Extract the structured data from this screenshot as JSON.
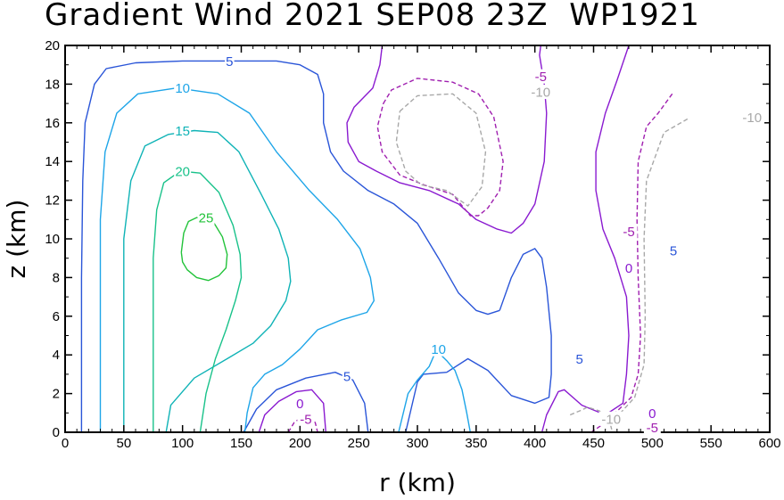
{
  "chart_data": {
    "type": "contour",
    "title": "Gradient Wind 2021 SEP08 23Z  WP1921",
    "xlabel": "r (km)",
    "ylabel": "z (km)",
    "xlim": [
      0,
      600
    ],
    "ylim": [
      0,
      20
    ],
    "xticks": [
      "0",
      "50",
      "100",
      "150",
      "200",
      "250",
      "300",
      "350",
      "400",
      "450",
      "500",
      "550",
      "600"
    ],
    "yticks": [
      "0",
      "2",
      "4",
      "6",
      "8",
      "10",
      "12",
      "14",
      "16",
      "18",
      "20"
    ],
    "colors": {
      "c25": "#22c33a",
      "c20": "#19c28a",
      "c15": "#0fb3b6",
      "c10": "#1ea5e8",
      "c5": "#2a55d8",
      "c0": "#8a1ad0",
      "cm5": "#a020b0",
      "cm10": "#a8a8a8"
    },
    "contours": [
      {
        "level": "5",
        "color": "c5",
        "dash": false,
        "points": [
          [
            14,
            0
          ],
          [
            14,
            8
          ],
          [
            15,
            13
          ],
          [
            17,
            16
          ],
          [
            25,
            18
          ],
          [
            35,
            18.8
          ],
          [
            60,
            19.1
          ],
          [
            100,
            19.2
          ],
          [
            140,
            19.2
          ],
          [
            180,
            19.2
          ],
          [
            200,
            19
          ],
          [
            215,
            18.5
          ],
          [
            220,
            17.5
          ],
          [
            220,
            16
          ],
          [
            226,
            14.5
          ],
          [
            237,
            13.5
          ],
          [
            258,
            12.5
          ],
          [
            280,
            11.8
          ],
          [
            300,
            10.8
          ],
          [
            318,
            9
          ],
          [
            335,
            7.2
          ],
          [
            350,
            6.3
          ],
          [
            360,
            6.1
          ],
          [
            370,
            6.3
          ]
        ]
      },
      {
        "level": "5",
        "color": "c5",
        "dash": false,
        "points": [
          [
            152,
            0
          ],
          [
            163,
            1.2
          ],
          [
            180,
            2.2
          ],
          [
            205,
            2.8
          ],
          [
            230,
            3.1
          ],
          [
            245,
            2.7
          ],
          [
            255,
            1.5
          ],
          [
            258,
            0
          ]
        ]
      },
      {
        "level": "5",
        "color": "c5",
        "dash": false,
        "points": [
          [
            370,
            6.3
          ],
          [
            380,
            8
          ],
          [
            390,
            9.2
          ],
          [
            400,
            9.5
          ],
          [
            406,
            9
          ],
          [
            410,
            7.5
          ],
          [
            414,
            5
          ],
          [
            414,
            3
          ],
          [
            412,
            1.8
          ],
          [
            400,
            1.5
          ],
          [
            380,
            1.9
          ],
          [
            360,
            3.2
          ],
          [
            343,
            3.8
          ],
          [
            325,
            3.1
          ],
          [
            305,
            3
          ],
          [
            300,
            2.6
          ],
          [
            290,
            0
          ]
        ]
      },
      {
        "level": "10",
        "color": "c10",
        "dash": false,
        "points": [
          [
            30,
            0
          ],
          [
            30,
            11
          ],
          [
            34,
            14.5
          ],
          [
            44,
            16.5
          ],
          [
            62,
            17.5
          ],
          [
            95,
            17.8
          ],
          [
            130,
            17.5
          ],
          [
            157,
            16.5
          ],
          [
            180,
            14.5
          ],
          [
            208,
            12.5
          ],
          [
            232,
            11
          ],
          [
            251,
            9.5
          ],
          [
            260,
            8
          ],
          [
            263,
            6.8
          ],
          [
            257,
            6.2
          ],
          [
            235,
            5.8
          ],
          [
            215,
            5.3
          ],
          [
            200,
            4.3
          ],
          [
            185,
            3.5
          ],
          [
            170,
            3
          ],
          [
            160,
            2.3
          ],
          [
            155,
            1
          ],
          [
            153,
            0
          ]
        ]
      },
      {
        "level": "10",
        "color": "c10",
        "dash": false,
        "points": [
          [
            284,
            0
          ],
          [
            288,
            1
          ],
          [
            292,
            2
          ],
          [
            300,
            2.7
          ],
          [
            310,
            3.4
          ],
          [
            315,
            4.1
          ],
          [
            320,
            4
          ],
          [
            325,
            3.7
          ],
          [
            332,
            3.2
          ],
          [
            338,
            2.2
          ],
          [
            342,
            1
          ],
          [
            345,
            0
          ]
        ]
      },
      {
        "level": "15",
        "color": "c15",
        "dash": false,
        "points": [
          [
            50,
            0
          ],
          [
            50,
            10
          ],
          [
            56,
            13
          ],
          [
            68,
            14.8
          ],
          [
            88,
            15.4
          ],
          [
            110,
            15.6
          ],
          [
            130,
            15.5
          ],
          [
            148,
            14.5
          ],
          [
            167,
            12.3
          ],
          [
            182,
            10.5
          ],
          [
            190,
            9
          ],
          [
            192,
            7.8
          ],
          [
            188,
            6.8
          ],
          [
            175,
            5.5
          ],
          [
            160,
            4.6
          ],
          [
            138,
            3.8
          ],
          [
            110,
            2.8
          ],
          [
            90,
            1.4
          ],
          [
            86,
            0
          ]
        ]
      },
      {
        "level": "20",
        "color": "c20",
        "dash": false,
        "points": [
          [
            75,
            0
          ],
          [
            75,
            9
          ],
          [
            78,
            11.5
          ],
          [
            84,
            12.9
          ],
          [
            98,
            13.5
          ],
          [
            115,
            13.4
          ],
          [
            131,
            12.4
          ],
          [
            143,
            10.7
          ],
          [
            149,
            9.2
          ],
          [
            150,
            8
          ],
          [
            145,
            6.8
          ],
          [
            137,
            5.3
          ],
          [
            128,
            3.8
          ],
          [
            120,
            2
          ],
          [
            115,
            0
          ]
        ]
      },
      {
        "level": "25",
        "color": "c25",
        "dash": false,
        "points": [
          [
            99,
            9.3
          ],
          [
            101,
            10.3
          ],
          [
            105,
            10.9
          ],
          [
            112,
            11.1
          ],
          [
            120,
            11.05
          ],
          [
            127,
            10.8
          ],
          [
            134,
            10.1
          ],
          [
            138,
            9.2
          ],
          [
            137,
            8.5
          ],
          [
            131,
            8.1
          ],
          [
            122,
            7.85
          ],
          [
            112,
            8
          ],
          [
            104,
            8.4
          ],
          [
            100,
            8.8
          ],
          [
            99,
            9.3
          ]
        ]
      },
      {
        "level": "0",
        "color": "c0",
        "dash": false,
        "points": [
          [
            270,
            20
          ],
          [
            268,
            19
          ],
          [
            262,
            17.8
          ],
          [
            246,
            16.8
          ],
          [
            240,
            16
          ],
          [
            241,
            15
          ],
          [
            250,
            14
          ],
          [
            265,
            13.5
          ],
          [
            285,
            12.9
          ],
          [
            310,
            12.5
          ],
          [
            335,
            11.8
          ],
          [
            350,
            11
          ],
          [
            368,
            10.5
          ],
          [
            380,
            10.3
          ],
          [
            390,
            10.8
          ],
          [
            400,
            11.8
          ],
          [
            408,
            14
          ],
          [
            410,
            16.5
          ],
          [
            408,
            18
          ],
          [
            404,
            19.5
          ],
          [
            405,
            20
          ]
        ]
      },
      {
        "level": "0",
        "color": "c0",
        "dash": false,
        "points": [
          [
            165,
            0
          ],
          [
            170,
            0.9
          ],
          [
            182,
            1.6
          ],
          [
            197,
            2.1
          ],
          [
            210,
            2.2
          ],
          [
            220,
            1.5
          ],
          [
            222,
            0
          ]
        ]
      },
      {
        "level": "0",
        "color": "c0",
        "dash": false,
        "points": [
          [
            480,
            20
          ],
          [
            470,
            18.2
          ],
          [
            460,
            16.5
          ],
          [
            452,
            14.5
          ],
          [
            452,
            12.5
          ],
          [
            458,
            10.5
          ],
          [
            468,
            9
          ],
          [
            478,
            7
          ],
          [
            480,
            5
          ],
          [
            478,
            3
          ],
          [
            475,
            1.5
          ],
          [
            460,
            0.9
          ],
          [
            440,
            1.4
          ],
          [
            425,
            2.2
          ],
          [
            420,
            2.1
          ],
          [
            410,
            0.9
          ],
          [
            406,
            0
          ]
        ]
      },
      {
        "level": "-5",
        "color": "cm5",
        "dash": true,
        "points": [
          [
            271,
            17
          ],
          [
            278,
            17.7
          ],
          [
            300,
            18.3
          ],
          [
            330,
            18.1
          ],
          [
            352,
            17.5
          ],
          [
            365,
            16.3
          ],
          [
            373,
            14
          ],
          [
            370,
            12.5
          ],
          [
            360,
            11.6
          ],
          [
            352,
            11.2
          ],
          [
            345,
            11.2
          ],
          [
            330,
            12.3
          ],
          [
            305,
            12.8
          ],
          [
            285,
            13.3
          ],
          [
            270,
            14.5
          ],
          [
            266,
            15.8
          ],
          [
            271,
            17
          ]
        ]
      },
      {
        "level": "-5",
        "color": "cm5",
        "dash": true,
        "points": [
          [
            190,
            0
          ],
          [
            195,
            0.5
          ],
          [
            202,
            0.8
          ],
          [
            208,
            0.8
          ],
          [
            213,
            0.5
          ],
          [
            215,
            0
          ]
        ]
      },
      {
        "level": "-5",
        "color": "cm5",
        "dash": true,
        "points": [
          [
            517,
            17.5
          ],
          [
            505,
            16.5
          ],
          [
            495,
            15.8
          ],
          [
            488,
            14
          ],
          [
            487,
            11
          ],
          [
            488,
            8
          ],
          [
            490,
            5
          ],
          [
            488,
            3
          ],
          [
            482,
            1.8
          ],
          [
            460,
            0.5
          ],
          [
            448,
            0
          ]
        ]
      },
      {
        "level": "-10",
        "color": "cm10",
        "dash": true,
        "points": [
          [
            285,
            16.6
          ],
          [
            300,
            17.4
          ],
          [
            330,
            17.5
          ],
          [
            350,
            16.5
          ],
          [
            358,
            14.5
          ],
          [
            355,
            12.7
          ],
          [
            343,
            11.7
          ],
          [
            325,
            12.5
          ],
          [
            303,
            12.8
          ],
          [
            290,
            13.5
          ],
          [
            282,
            15
          ],
          [
            285,
            16.6
          ]
        ]
      },
      {
        "level": "-10",
        "color": "cm10",
        "dash": true,
        "points": [
          [
            530,
            16.2
          ],
          [
            510,
            15.5
          ],
          [
            495,
            13
          ],
          [
            493,
            10
          ],
          [
            494,
            6
          ],
          [
            493,
            3.5
          ],
          [
            485,
            1.8
          ],
          [
            470,
            0.8
          ],
          [
            458,
            0.5
          ]
        ]
      },
      {
        "level": "-10",
        "color": "cm10",
        "dash": true,
        "points": [
          [
            430,
            0.9
          ],
          [
            440,
            1.15
          ],
          [
            445,
            1.3
          ],
          [
            455,
            1.1
          ],
          [
            464,
            0.5
          ],
          [
            466,
            0
          ]
        ]
      }
    ],
    "labels": [
      {
        "text": "5",
        "x": 140,
        "y": 19.2,
        "color": "c5"
      },
      {
        "text": "10",
        "x": 100,
        "y": 17.8,
        "color": "c10"
      },
      {
        "text": "15",
        "x": 100,
        "y": 15.6,
        "color": "c15"
      },
      {
        "text": "20",
        "x": 100,
        "y": 13.5,
        "color": "c20"
      },
      {
        "text": "25",
        "x": 120,
        "y": 11.1,
        "color": "c25"
      },
      {
        "text": "-5",
        "x": 405,
        "y": 18.4,
        "color": "cm5"
      },
      {
        "text": "-10",
        "x": 405,
        "y": 17.6,
        "color": "cm10"
      },
      {
        "text": "-5",
        "x": 480,
        "y": 10.4,
        "color": "cm5"
      },
      {
        "text": "0",
        "x": 480,
        "y": 8.5,
        "color": "c0"
      },
      {
        "text": "5",
        "x": 518,
        "y": 9.4,
        "color": "c5"
      },
      {
        "text": "-10",
        "x": 585,
        "y": 16.3,
        "color": "cm10"
      },
      {
        "text": "10",
        "x": 318,
        "y": 4.3,
        "color": "c10"
      },
      {
        "text": "5",
        "x": 438,
        "y": 3.8,
        "color": "c5"
      },
      {
        "text": "5",
        "x": 240,
        "y": 2.9,
        "color": "c5"
      },
      {
        "text": "0",
        "x": 200,
        "y": 1.5,
        "color": "c0"
      },
      {
        "text": "-5",
        "x": 205,
        "y": 0.7,
        "color": "cm5"
      },
      {
        "text": "0",
        "x": 500,
        "y": 1.0,
        "color": "c0"
      },
      {
        "text": "-10",
        "x": 465,
        "y": 0.7,
        "color": "cm10"
      },
      {
        "text": "-5",
        "x": 500,
        "y": 0.25,
        "color": "cm5"
      }
    ]
  }
}
